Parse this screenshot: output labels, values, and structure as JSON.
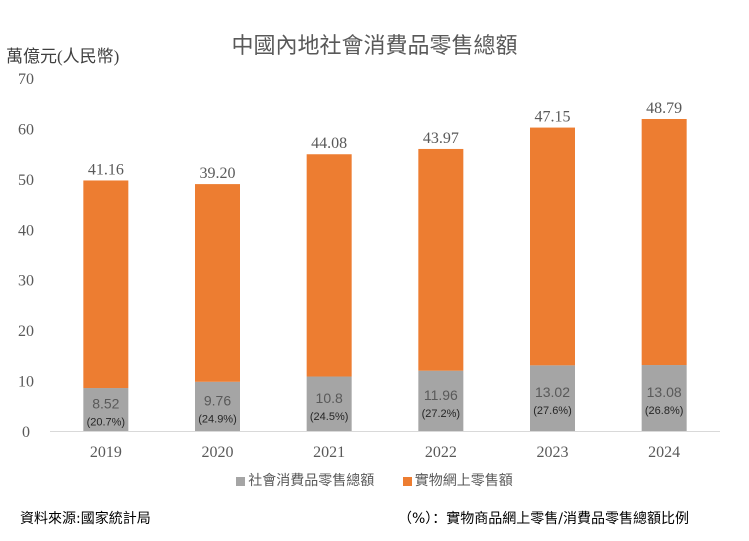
{
  "chart_data": {
    "type": "bar",
    "stacked": true,
    "title": "中國內地社會消費品零售總額",
    "ylabel": "萬億元(人民幣)",
    "ylim": [
      0,
      70
    ],
    "yticks": [
      "0",
      "10",
      "20",
      "30",
      "40",
      "50",
      "60",
      "70"
    ],
    "categories": [
      "2019",
      "2020",
      "2021",
      "2022",
      "2023",
      "2024"
    ],
    "series": [
      {
        "name": "社會消費品零售總額",
        "color": "#A5A5A5",
        "values": [
          8.52,
          9.76,
          10.8,
          11.96,
          13.02,
          13.08
        ],
        "labels": [
          "8.52",
          "9.76",
          "10.8",
          "11.96",
          "13.02",
          "13.08"
        ],
        "sublabels": [
          "(20.7%)",
          "(24.9%)",
          "(24.5%)",
          "(27.2%)",
          "(27.6%)",
          "(26.8%)"
        ]
      },
      {
        "name": "實物網上零售額",
        "color": "#ED7D31",
        "values": [
          41.16,
          39.2,
          44.08,
          43.97,
          47.15,
          48.79
        ],
        "labels": [
          "41.16",
          "39.20",
          "44.08",
          "43.97",
          "47.15",
          "48.79"
        ]
      }
    ],
    "legend": "bottom",
    "grid": false
  },
  "footer": {
    "source": "資料來源:國家統計局",
    "note": "（%）：實物商品網上零售/消費品零售總額比例"
  }
}
